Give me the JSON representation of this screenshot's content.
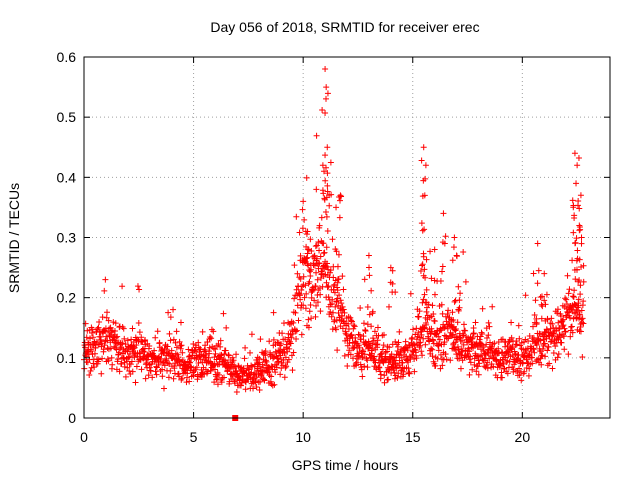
{
  "chart_data": {
    "type": "scatter",
    "title": "Day 056 of 2018, SRMTID for receiver erec",
    "xlabel": "GPS time / hours",
    "ylabel": "SRMTID / TECUs",
    "xlim": [
      0,
      24
    ],
    "ylim": [
      0,
      0.6
    ],
    "xticks": [
      "0",
      "5",
      "10",
      "15",
      "20"
    ],
    "yticks": [
      "0",
      "0.1",
      "0.2",
      "0.3",
      "0.4",
      "0.5",
      "0.6"
    ],
    "grid": true,
    "marker": "+",
    "color": "#ff0000",
    "envelope": [
      [
        0.0,
        0.12
      ],
      [
        0.5,
        0.12
      ],
      [
        1.0,
        0.13
      ],
      [
        1.5,
        0.12
      ],
      [
        2.0,
        0.11
      ],
      [
        2.5,
        0.11
      ],
      [
        3.0,
        0.1
      ],
      [
        3.5,
        0.1
      ],
      [
        4.0,
        0.1
      ],
      [
        4.5,
        0.09
      ],
      [
        5.0,
        0.09
      ],
      [
        5.5,
        0.1
      ],
      [
        6.0,
        0.1
      ],
      [
        6.5,
        0.09
      ],
      [
        7.0,
        0.07
      ],
      [
        7.5,
        0.07
      ],
      [
        8.0,
        0.08
      ],
      [
        8.5,
        0.09
      ],
      [
        9.0,
        0.1
      ],
      [
        9.5,
        0.13
      ],
      [
        10.0,
        0.24
      ],
      [
        10.5,
        0.21
      ],
      [
        11.0,
        0.25
      ],
      [
        11.5,
        0.19
      ],
      [
        12.0,
        0.14
      ],
      [
        12.5,
        0.12
      ],
      [
        13.0,
        0.12
      ],
      [
        13.5,
        0.1
      ],
      [
        14.0,
        0.09
      ],
      [
        14.5,
        0.09
      ],
      [
        15.0,
        0.11
      ],
      [
        15.5,
        0.16
      ],
      [
        16.0,
        0.13
      ],
      [
        16.5,
        0.14
      ],
      [
        17.0,
        0.13
      ],
      [
        17.5,
        0.12
      ],
      [
        18.0,
        0.11
      ],
      [
        18.5,
        0.11
      ],
      [
        19.0,
        0.1
      ],
      [
        19.5,
        0.1
      ],
      [
        20.0,
        0.1
      ],
      [
        20.5,
        0.12
      ],
      [
        21.0,
        0.12
      ],
      [
        21.5,
        0.14
      ],
      [
        22.0,
        0.15
      ],
      [
        22.5,
        0.19
      ],
      [
        22.8,
        0.18
      ]
    ],
    "peaks": [
      [
        10.0,
        0.36
      ],
      [
        10.2,
        0.31
      ],
      [
        10.6,
        0.38
      ],
      [
        10.9,
        0.42
      ],
      [
        11.0,
        0.58
      ],
      [
        11.05,
        0.55
      ],
      [
        11.1,
        0.45
      ],
      [
        11.5,
        0.35
      ],
      [
        11.7,
        0.37
      ],
      [
        13.0,
        0.27
      ],
      [
        14.0,
        0.25
      ],
      [
        15.5,
        0.45
      ],
      [
        15.6,
        0.42
      ],
      [
        15.55,
        0.37
      ],
      [
        16.0,
        0.28
      ],
      [
        16.4,
        0.34
      ],
      [
        16.9,
        0.3
      ],
      [
        17.0,
        0.27
      ],
      [
        20.7,
        0.29
      ],
      [
        21.0,
        0.24
      ],
      [
        22.4,
        0.44
      ],
      [
        22.5,
        0.42
      ],
      [
        22.45,
        0.39
      ],
      [
        22.6,
        0.32
      ],
      [
        22.7,
        0.3
      ]
    ],
    "outlier_marker": [
      6.9,
      0.0
    ]
  }
}
